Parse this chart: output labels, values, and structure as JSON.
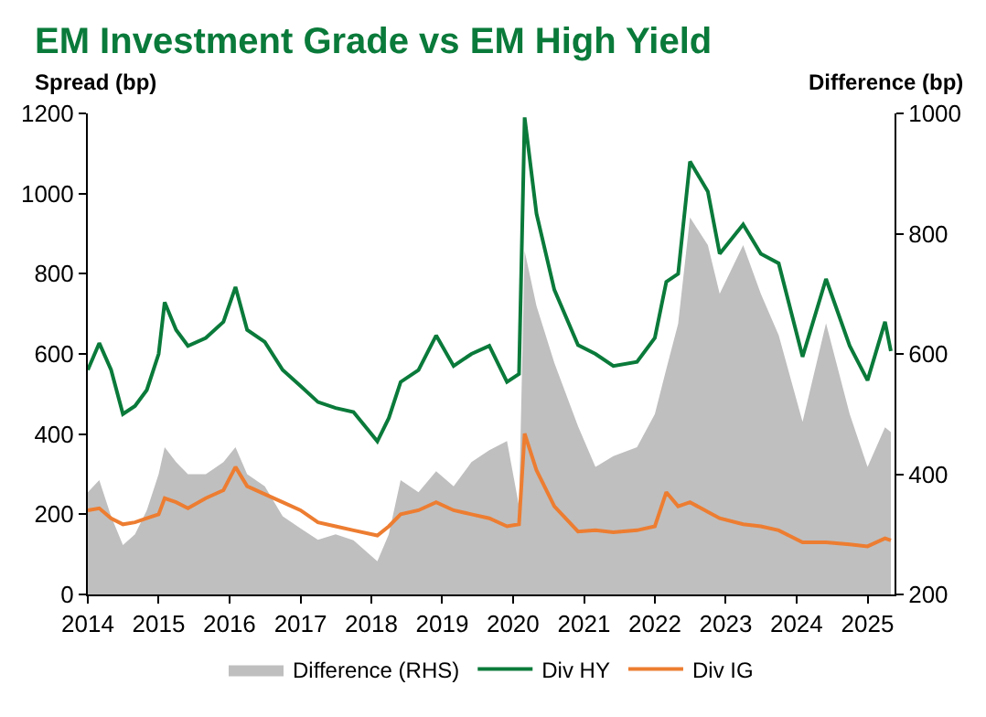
{
  "chart_data": {
    "type": "line",
    "title": "EM Investment Grade vs EM High Yield",
    "ylabel": "Spread (bp)",
    "y2label": "Difference (bp)",
    "x": [
      "2014-01",
      "2014-03",
      "2014-05",
      "2014-07",
      "2014-09",
      "2014-11",
      "2015-01",
      "2015-02",
      "2015-04",
      "2015-06",
      "2015-09",
      "2015-12",
      "2016-02",
      "2016-04",
      "2016-07",
      "2016-10",
      "2017-01",
      "2017-04",
      "2017-07",
      "2017-10",
      "2018-02",
      "2018-04",
      "2018-06",
      "2018-09",
      "2018-12",
      "2019-03",
      "2019-06",
      "2019-09",
      "2019-12",
      "2020-02",
      "2020-03",
      "2020-05",
      "2020-08",
      "2020-12",
      "2021-03",
      "2021-06",
      "2021-10",
      "2022-01",
      "2022-03",
      "2022-05",
      "2022-07",
      "2022-10",
      "2022-12",
      "2023-04",
      "2023-07",
      "2023-10",
      "2024-02",
      "2024-06",
      "2024-10",
      "2025-01",
      "2025-04",
      "2025-05"
    ],
    "series": [
      {
        "name": "Difference (RHS)",
        "type": "area",
        "axis": "y2",
        "color": "#bfbfbf",
        "values": [
          370,
          390,
          330,
          282,
          300,
          340,
          400,
          445,
          420,
          400,
          400,
          420,
          445,
          400,
          380,
          330,
          310,
          291,
          300,
          290,
          255,
          300,
          390,
          370,
          405,
          380,
          420,
          440,
          455,
          347,
          771,
          680,
          585,
          480,
          412,
          430,
          445,
          500,
          575,
          650,
          827,
          781,
          700,
          781,
          700,
          631,
          487,
          651,
          500,
          412,
          478,
          470
        ]
      },
      {
        "name": "Div HY",
        "color": "#0a7a3a",
        "values": [
          560,
          627,
          560,
          450,
          470,
          510,
          600,
          729,
          660,
          620,
          640,
          680,
          767,
          660,
          630,
          560,
          520,
          480,
          465,
          455,
          382,
          440,
          530,
          560,
          646,
          570,
          600,
          620,
          530,
          550,
          1190,
          950,
          760,
          622,
          600,
          570,
          580,
          640,
          780,
          800,
          1080,
          1005,
          850,
          923,
          850,
          826,
          593,
          787,
          620,
          534,
          680,
          607
        ]
      },
      {
        "name": "Div IG",
        "color": "#ed7d31",
        "values": [
          210,
          215,
          190,
          175,
          180,
          190,
          200,
          240,
          230,
          215,
          240,
          260,
          318,
          270,
          250,
          230,
          210,
          180,
          170,
          160,
          147,
          170,
          200,
          210,
          230,
          210,
          200,
          190,
          170,
          175,
          401,
          310,
          220,
          157,
          160,
          155,
          160,
          170,
          255,
          220,
          230,
          206,
          190,
          175,
          170,
          160,
          130,
          130,
          125,
          120,
          140,
          135
        ]
      }
    ],
    "xlim": [
      "2014",
      "2025-05-20"
    ],
    "xticks": [
      "2014",
      "2015",
      "2016",
      "2017",
      "2018",
      "2019",
      "2020",
      "2021",
      "2022",
      "2023",
      "2024",
      "2025"
    ],
    "ylim": [
      0,
      1200
    ],
    "yticks": [
      0,
      200,
      400,
      600,
      800,
      1000,
      1200
    ],
    "y2lim": [
      200,
      1000
    ],
    "y2ticks": [
      200,
      400,
      600,
      800,
      1000
    ],
    "legend": "bottom",
    "marker": "none",
    "line_style": "solid"
  }
}
